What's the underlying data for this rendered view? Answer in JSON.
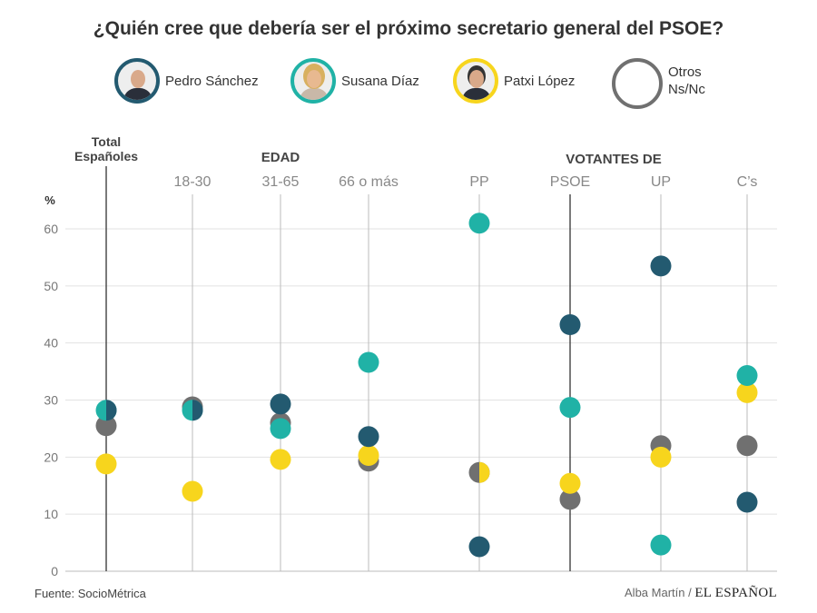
{
  "colors": {
    "Pedro Sánchez": "#235a70",
    "Susana Díaz": "#20b2a6",
    "Patxi López": "#f7d51d",
    "Otros Ns/Nc": "#707070"
  },
  "legend": [
    {
      "name": "Pedro Sánchez",
      "label": "Pedro Sánchez"
    },
    {
      "name": "Susana Díaz",
      "label": "Susana Díaz"
    },
    {
      "name": "Patxi López",
      "label": "Patxi López"
    },
    {
      "name": "Otros Ns/Nc",
      "label1": "Otros",
      "label2": "Ns/Nc"
    }
  ],
  "source": "Fuente: SocioMétrica",
  "credit": "Alba Martín /",
  "logo": "EL ESPAÑOL",
  "chart_data": {
    "type": "scatter",
    "title": "¿Quién cree que debería ser el próximo secretario general del PSOE?",
    "ylabel": "%",
    "ylim": [
      0,
      60
    ],
    "yticks": [
      0,
      10,
      20,
      30,
      40,
      50,
      60
    ],
    "grid": true,
    "legend_position": "top",
    "group_labels": {
      "total": [
        "Total",
        "Españoles"
      ],
      "edad": "EDAD",
      "votantes": "VOTANTES DE"
    },
    "categories": [
      "Total Españoles",
      "18-30",
      "31-65",
      "66 o más",
      "PP",
      "PSOE",
      "UP",
      "C’s"
    ],
    "category_labels": [
      "",
      "18-30",
      "31-65",
      "66 o más",
      "PP",
      "PSOE",
      "UP",
      "C’s"
    ],
    "series": [
      {
        "name": "Otros Ns/Nc",
        "values": [
          25.5,
          28.8,
          26,
          19.3,
          17.3,
          12.6,
          22,
          22
        ]
      },
      {
        "name": "Patxi López",
        "values": [
          18.8,
          14,
          19.6,
          20.3,
          17.3,
          15.4,
          20,
          31.3
        ]
      },
      {
        "name": "Susana Díaz",
        "values": [
          28.2,
          28.2,
          25,
          36.6,
          61,
          28.7,
          4.6,
          34.3
        ]
      },
      {
        "name": "Pedro Sánchez",
        "values": [
          28.2,
          28.2,
          29.3,
          23.6,
          4.3,
          43.2,
          53.5,
          12.1
        ]
      }
    ]
  }
}
